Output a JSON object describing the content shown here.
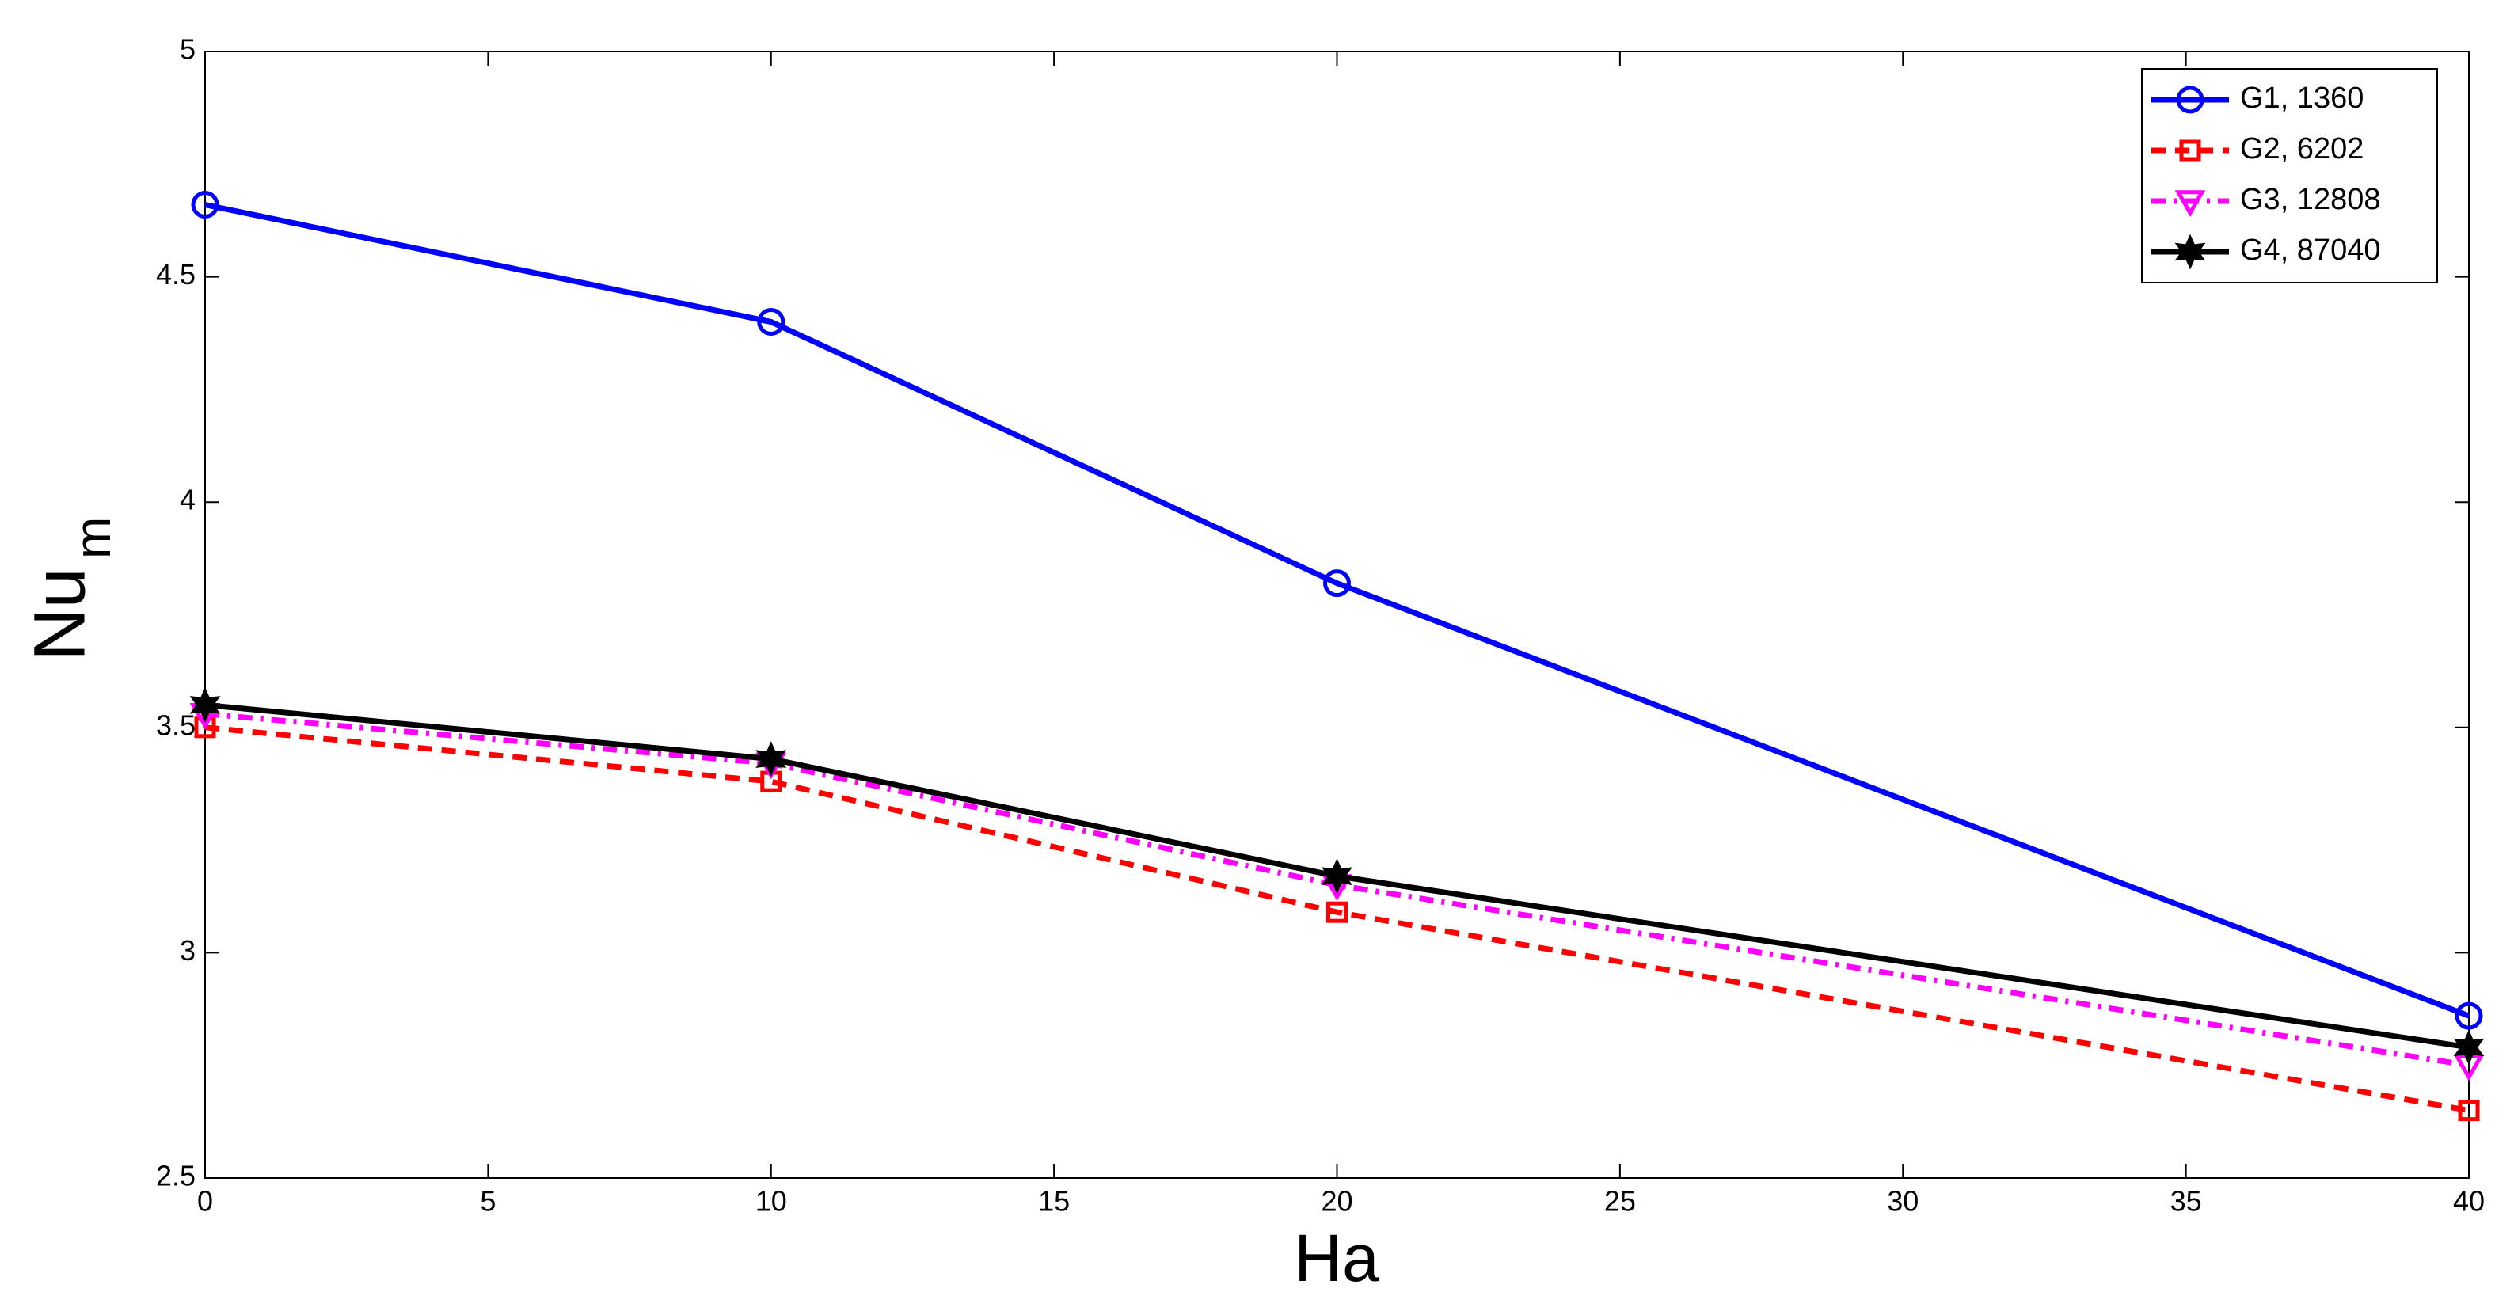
{
  "chart_data": {
    "type": "line",
    "xlabel": "Ha",
    "ylabel": [
      "Nu",
      "m"
    ],
    "x": [
      0,
      10,
      20,
      40
    ],
    "xlim": [
      0,
      40
    ],
    "xticks": [
      0,
      5,
      10,
      15,
      20,
      25,
      30,
      35,
      40
    ],
    "ylim": [
      2.5,
      5
    ],
    "yticks": [
      2.5,
      3,
      3.5,
      4,
      4.5,
      5
    ],
    "grid": false,
    "legend": "upper right",
    "series": [
      {
        "name": "G1, 1360",
        "color": "#0000ff",
        "dash": "solid",
        "marker": "circle",
        "values": [
          4.66,
          4.4,
          3.82,
          2.86
        ]
      },
      {
        "name": "G2, 6202",
        "color": "#ff0000",
        "dash": "dashed",
        "marker": "square",
        "values": [
          3.5,
          3.38,
          3.09,
          2.65
        ]
      },
      {
        "name": "G3, 12808",
        "color": "#ff00ff",
        "dash": "dashdot",
        "marker": "triangle-down",
        "values": [
          3.53,
          3.42,
          3.15,
          2.75
        ]
      },
      {
        "name": "G4, 87040",
        "color": "#000000",
        "dash": "solid",
        "marker": "hexagram",
        "values": [
          3.55,
          3.43,
          3.17,
          2.79
        ]
      }
    ]
  }
}
